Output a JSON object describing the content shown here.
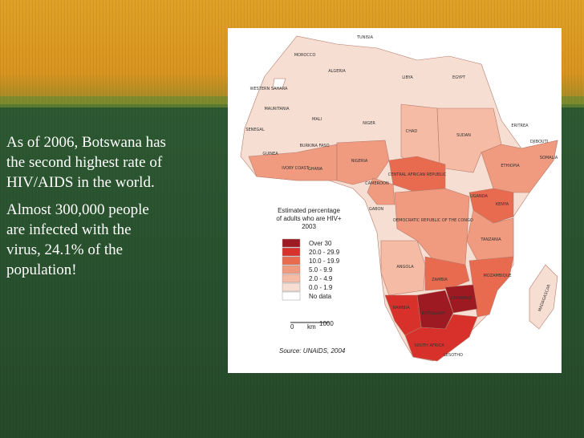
{
  "slide": {
    "paragraphs": [
      [
        "As of 2006, Botswana has",
        "the second highest rate of",
        "HIV/AIDS in the world."
      ],
      [
        "Almost 300,000 people",
        "are infected with the",
        "virus, 24.1% of the",
        "population!"
      ]
    ]
  },
  "map": {
    "legend_title": [
      "Estimated percentage",
      "of adults who are HIV+",
      "2003"
    ],
    "legend": [
      {
        "label": "Over 30",
        "color": "#9e1a22"
      },
      {
        "label": "20.0 - 29.9",
        "color": "#d8312b"
      },
      {
        "label": "10.0 - 19.9",
        "color": "#e86a4f"
      },
      {
        "label": "5.0 - 9.9",
        "color": "#f09a7f"
      },
      {
        "label": "2.0 - 4.9",
        "color": "#f5bba4"
      },
      {
        "label": "0.0 - 1.9",
        "color": "#f7ded3"
      },
      {
        "label": "No data",
        "color": "#ffffff"
      }
    ],
    "scale": [
      "0",
      "km",
      "1000"
    ],
    "source": "Source:  UNAIDS, 2004",
    "countries": [
      "MOROCCO",
      "TUNISIA",
      "WESTERN SAHARA",
      "ALGERIA",
      "LIBYA",
      "EGYPT",
      "MAURITANIA",
      "MALI",
      "NIGER",
      "CHAD",
      "SUDAN",
      "ERITREA",
      "DJIBOUTI",
      "SENEGAL",
      "GUINEA",
      "BURKINA FASO",
      "IVORY COAST",
      "GHANA",
      "NIGERIA",
      "ETHIOPIA",
      "SOMALIA",
      "CENTRAL AFRICAN REPUBLIC",
      "CAMEROON",
      "GABON",
      "DEMOCRATIC REPUBLIC OF THE CONGO",
      "UGANDA",
      "KENYA",
      "TANZANIA",
      "ANGOLA",
      "ZAMBIA",
      "MOZAMBIQUE",
      "ZIMBABWE",
      "NAMIBIA",
      "BOTSWANA",
      "SOUTH AFRICA",
      "LESOTHO",
      "MADAGASCAR"
    ]
  }
}
